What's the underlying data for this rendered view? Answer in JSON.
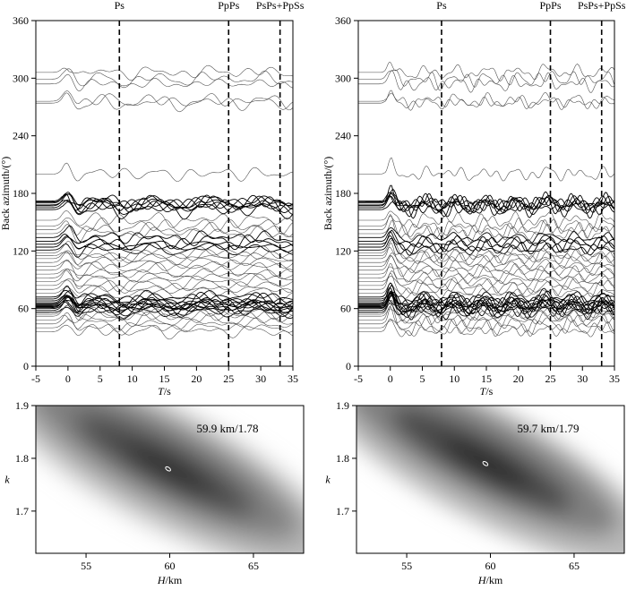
{
  "chart_data": [
    {
      "type": "line",
      "panel": "receiver-functions-left",
      "xlabel_italic": "T",
      "xlabel_unit": "/s",
      "ylabel": "Back azimuth/(°)",
      "xlim": [
        -5,
        35
      ],
      "ylim": [
        0,
        360
      ],
      "xticks": [
        -5,
        0,
        5,
        10,
        15,
        20,
        25,
        30,
        35
      ],
      "yticks": [
        0,
        60,
        120,
        180,
        240,
        300,
        360
      ],
      "phases": [
        {
          "name": "Ps",
          "t": 8
        },
        {
          "name": "PpPs",
          "t": 25
        },
        {
          "name": "PsPs+PpSs",
          "t": 33
        }
      ],
      "back_azimuths": [
        274,
        276,
        294,
        299,
        306,
        200,
        163,
        165,
        167,
        168,
        170,
        171,
        172,
        152,
        146,
        142,
        138,
        134,
        130,
        127,
        124,
        121,
        118,
        115,
        112,
        108,
        104,
        100,
        96,
        92,
        88,
        84,
        80,
        76,
        72,
        70,
        68,
        66,
        65,
        64,
        63,
        62,
        61,
        60,
        58,
        56,
        54,
        52,
        48,
        44,
        40,
        36
      ]
    },
    {
      "type": "line",
      "panel": "receiver-functions-right",
      "xlabel_italic": "T",
      "xlabel_unit": "/s",
      "ylabel": "Back azimuth/(°)",
      "xlim": [
        -5,
        35
      ],
      "ylim": [
        0,
        360
      ],
      "xticks": [
        -5,
        0,
        5,
        10,
        15,
        20,
        25,
        30,
        35
      ],
      "yticks": [
        0,
        60,
        120,
        180,
        240,
        300,
        360
      ],
      "phases": [
        {
          "name": "Ps",
          "t": 8
        },
        {
          "name": "PpPs",
          "t": 25
        },
        {
          "name": "PsPs+PpSs",
          "t": 33
        }
      ],
      "back_azimuths": [
        274,
        276,
        294,
        299,
        306,
        200,
        163,
        165,
        167,
        168,
        170,
        171,
        172,
        152,
        146,
        142,
        138,
        134,
        130,
        127,
        124,
        121,
        118,
        115,
        112,
        108,
        104,
        100,
        96,
        92,
        88,
        84,
        80,
        76,
        72,
        70,
        68,
        66,
        65,
        64,
        63,
        62,
        61,
        60,
        58,
        56,
        54,
        52,
        48,
        44,
        40,
        36
      ]
    },
    {
      "type": "heatmap",
      "panel": "hk-stack-left",
      "xlabel_italic": "H",
      "xlabel_unit": "/km",
      "ylabel": "k",
      "xlim": [
        52,
        68
      ],
      "ylim": [
        1.62,
        1.9
      ],
      "xticks": [
        55,
        60,
        65
      ],
      "yticks": [
        1.7,
        1.8,
        1.9
      ],
      "best_H": 59.9,
      "best_k": 1.78,
      "annotation": "59.9 km/1.78"
    },
    {
      "type": "heatmap",
      "panel": "hk-stack-right",
      "xlabel_italic": "H",
      "xlabel_unit": "/km",
      "ylabel": "k",
      "xlim": [
        52,
        68
      ],
      "ylim": [
        1.62,
        1.9
      ],
      "xticks": [
        55,
        60,
        65
      ],
      "yticks": [
        1.7,
        1.8,
        1.9
      ],
      "best_H": 59.7,
      "best_k": 1.79,
      "annotation": "59.7 km/1.79"
    }
  ]
}
